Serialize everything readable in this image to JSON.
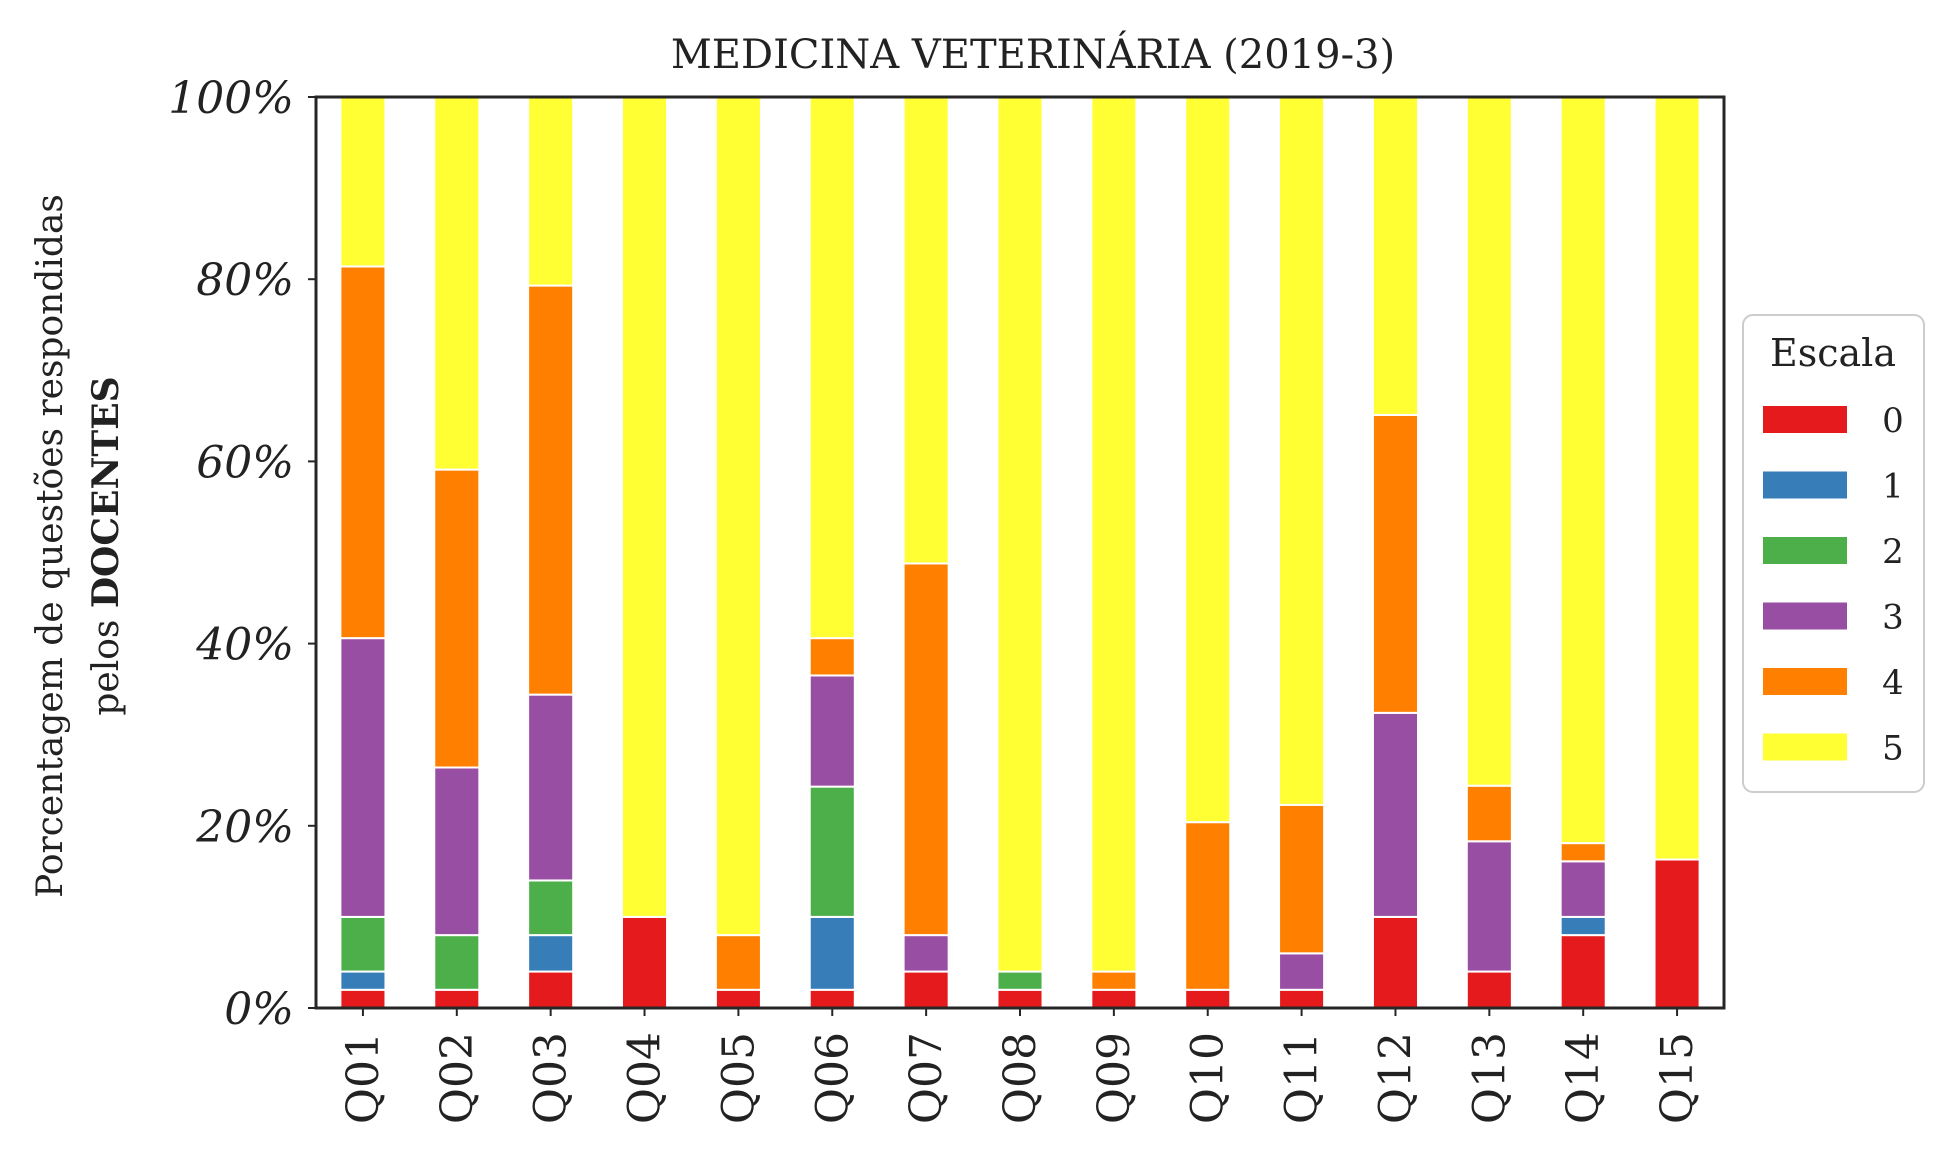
{
  "chart_data": {
    "type": "bar",
    "stacked": true,
    "title": "MEDICINA VETERINÁRIA (2019-3)",
    "ylabel_line1": "Porcentagem de questões respondidas",
    "ylabel_line2_prefix": "pelos ",
    "ylabel_line2_bold": "DOCENTES",
    "ylim": [
      0,
      100
    ],
    "y_ticks": [
      "0%",
      "20%",
      "40%",
      "60%",
      "80%",
      "100%"
    ],
    "y_tick_values": [
      0,
      20,
      40,
      60,
      80,
      100
    ],
    "grid": false,
    "legend_title": "Escala",
    "legend_position": "right",
    "categories": [
      "Q01",
      "Q02",
      "Q03",
      "Q04",
      "Q05",
      "Q06",
      "Q07",
      "Q08",
      "Q09",
      "Q10",
      "Q11",
      "Q12",
      "Q13",
      "Q14",
      "Q15"
    ],
    "series": [
      {
        "name": "0",
        "color": "#e41a1c",
        "values": [
          2,
          2,
          4,
          10,
          2,
          2,
          4,
          2,
          2,
          2,
          2,
          10,
          4,
          8,
          16.3
        ]
      },
      {
        "name": "1",
        "color": "#377eb8",
        "values": [
          2,
          0,
          4,
          0,
          0,
          8,
          0,
          0,
          0,
          0,
          0,
          0,
          0,
          2,
          0
        ]
      },
      {
        "name": "2",
        "color": "#4daf4a",
        "values": [
          6,
          6,
          6,
          0,
          0,
          14.3,
          0,
          2,
          0,
          0,
          0,
          0,
          0,
          0,
          0
        ]
      },
      {
        "name": "3",
        "color": "#984ea3",
        "values": [
          30.6,
          18.4,
          20.4,
          0,
          0,
          12.2,
          4,
          0,
          0,
          0,
          4,
          22.4,
          14.3,
          6.1,
          0
        ]
      },
      {
        "name": "4",
        "color": "#ff7f00",
        "values": [
          40.8,
          32.7,
          44.9,
          0,
          6,
          4.1,
          40.8,
          0,
          2,
          18.4,
          16.3,
          32.7,
          6.1,
          2,
          0
        ]
      },
      {
        "name": "5",
        "color": "#ffff33",
        "values": [
          18.6,
          40.9,
          20.7,
          90,
          92,
          59.4,
          51.2,
          96,
          96,
          79.6,
          77.7,
          34.9,
          75.6,
          81.9,
          83.7
        ]
      }
    ]
  }
}
